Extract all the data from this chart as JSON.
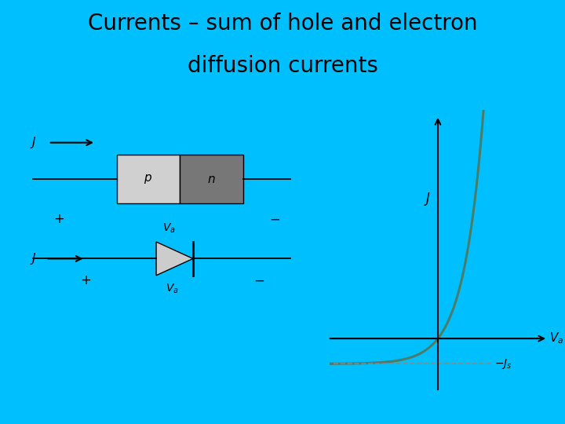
{
  "title_line1": "Currents – sum of hole and electron",
  "title_line2": "diffusion currents",
  "title_fontsize": 20,
  "title_fontweight": "normal",
  "bg_color": "#00BFFF",
  "panel_bg": "#FFFFFF",
  "curve_color": "#4a7c6a",
  "curve_linewidth": 2.2,
  "dashed_color": "#888888",
  "p_color": "#d0d0d0",
  "n_color": "#777777",
  "diode_fill": "#cccccc"
}
